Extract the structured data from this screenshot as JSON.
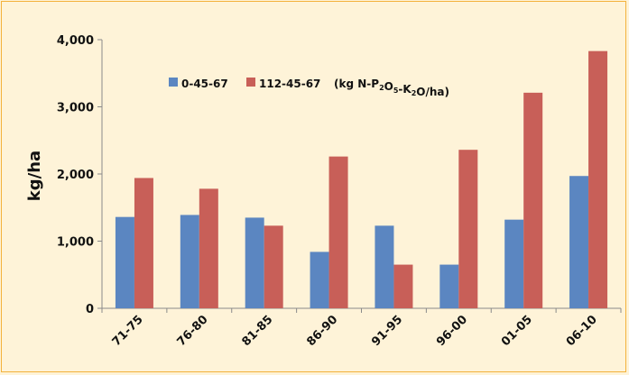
{
  "chart_data": {
    "type": "bar",
    "categories": [
      "71-75",
      "76-80",
      "81-85",
      "86-90",
      "91-95",
      "96-00",
      "01-05",
      "06-10"
    ],
    "series": [
      {
        "name": "0-45-67",
        "color": "#5b86c1",
        "values": [
          1360,
          1390,
          1350,
          840,
          1230,
          650,
          1320,
          1970
        ]
      },
      {
        "name": "112-45-67",
        "color": "#c85f58",
        "values": [
          1940,
          1780,
          1230,
          2260,
          650,
          2360,
          3210,
          3830
        ]
      }
    ],
    "ylabel": "kg/ha",
    "ylim": [
      0,
      4000
    ],
    "yticks": [
      0,
      1000,
      2000,
      3000,
      4000
    ],
    "ytick_labels": [
      "0",
      "1,000",
      "2,000",
      "3,000",
      "4,000"
    ],
    "legend_note": "(kg N-P2O5-K2O/ha)",
    "legend_position": "top-center",
    "grid": false,
    "background_color": "#fef3d8",
    "border_color": "#f3b23c"
  }
}
